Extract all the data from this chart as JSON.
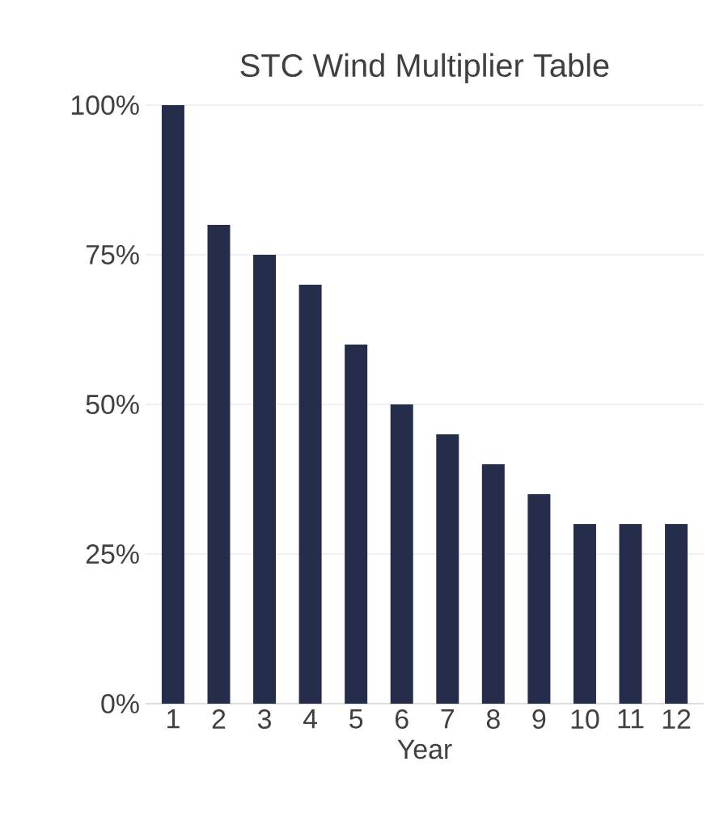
{
  "chart_data": {
    "type": "bar",
    "title": "STC Wind Multiplier Table",
    "xlabel": "Year",
    "categories": [
      "1",
      "2",
      "3",
      "4",
      "5",
      "6",
      "7",
      "8",
      "9",
      "10",
      "11",
      "12"
    ],
    "values": [
      100,
      80,
      75,
      70,
      60,
      50,
      45,
      40,
      35,
      30,
      30,
      30
    ],
    "color": "#252d4a",
    "ylim": [
      0,
      100
    ],
    "yticks": [
      {
        "value": 0,
        "label": "0%"
      },
      {
        "value": 25,
        "label": "25%"
      },
      {
        "value": 50,
        "label": "50%"
      },
      {
        "value": 75,
        "label": "75%"
      },
      {
        "value": 100,
        "label": "100%"
      }
    ],
    "grid": "y"
  }
}
